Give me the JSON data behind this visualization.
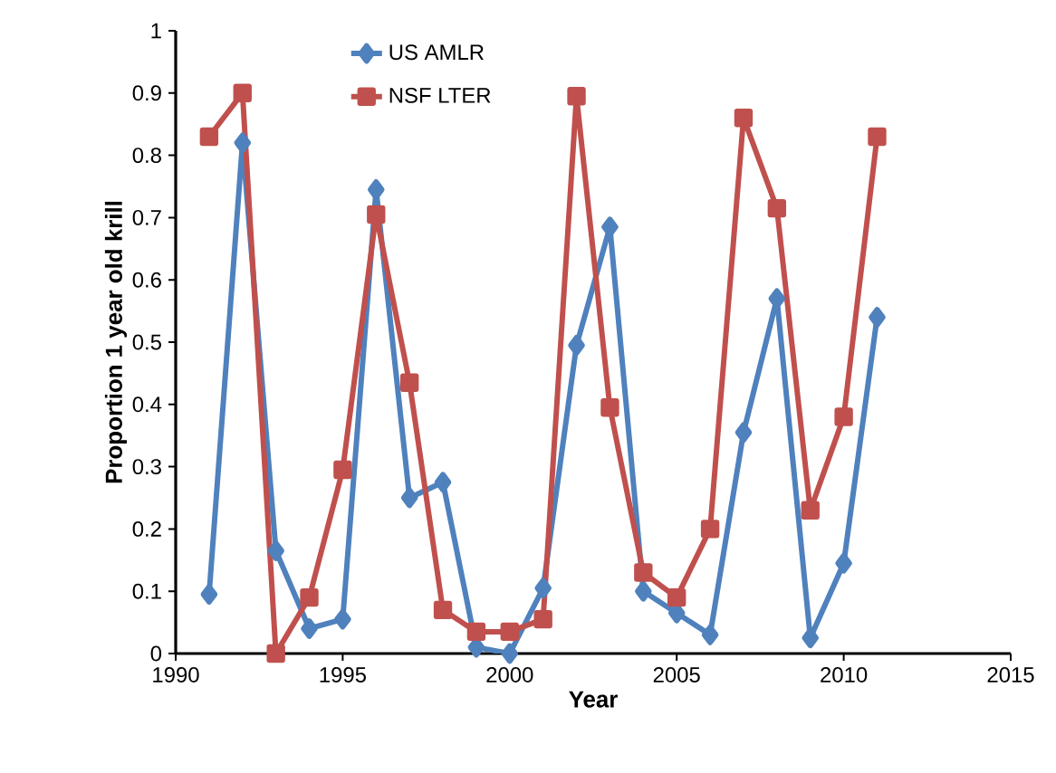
{
  "chart_data": {
    "type": "line",
    "xlabel": "Year",
    "ylabel": "Proportion 1 year old krill",
    "x": [
      1991,
      1992,
      1993,
      1994,
      1995,
      1996,
      1997,
      1998,
      1999,
      2000,
      2001,
      2002,
      2003,
      2004,
      2005,
      2006,
      2007,
      2008,
      2009,
      2010,
      2011
    ],
    "series": [
      {
        "name": "US AMLR",
        "color": "#4f81bd",
        "marker": "diamond",
        "values": [
          0.095,
          0.82,
          0.165,
          0.04,
          0.055,
          0.745,
          0.25,
          0.275,
          0.01,
          0.0,
          0.105,
          0.495,
          0.685,
          0.1,
          0.065,
          0.03,
          0.355,
          0.57,
          0.025,
          0.145,
          0.54
        ]
      },
      {
        "name": "NSF LTER",
        "color": "#c0504d",
        "marker": "square",
        "values": [
          0.83,
          0.9,
          0.0,
          0.09,
          0.295,
          0.705,
          0.435,
          0.07,
          0.035,
          0.035,
          0.055,
          0.895,
          0.395,
          0.13,
          0.09,
          0.2,
          0.86,
          0.715,
          0.23,
          0.38,
          0.83
        ]
      }
    ],
    "xlim": [
      1990,
      2015
    ],
    "xticks": [
      1990,
      1995,
      2000,
      2005,
      2010,
      2015
    ],
    "ylim": [
      0,
      1
    ],
    "yticks": [
      0,
      0.1,
      0.2,
      0.3,
      0.4,
      0.5,
      0.6,
      0.7,
      0.8,
      0.9,
      1
    ],
    "grid": false,
    "legend": "top",
    "line_style": "solid"
  }
}
